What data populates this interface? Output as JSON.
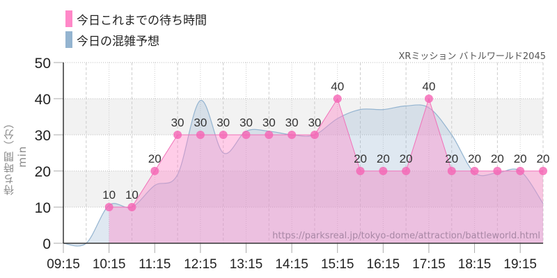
{
  "legend": {
    "items": [
      {
        "label": "今日これまでの待ち時間",
        "color": "#ff88c8"
      },
      {
        "label": "今日の混雑予想",
        "color": "#94b4d0"
      }
    ]
  },
  "subtitle": "XRミッション バトルワールド2045",
  "watermark": "https://parksreal.jp/tokyo-dome/attraction/battleworld.html",
  "chart_data": {
    "type": "area",
    "title": "XRミッション バトルワールド2045",
    "xlabel": "",
    "ylabel": "待ち時間（分） min",
    "ylim": [
      0,
      50
    ],
    "yticks": [
      0,
      10,
      20,
      30,
      40,
      50
    ],
    "xticks": [
      "09:15",
      "10:15",
      "11:15",
      "12:15",
      "13:15",
      "14:15",
      "15:15",
      "16:15",
      "17:15",
      "18:15",
      "19:15"
    ],
    "grid": true,
    "legend_position": "top-left",
    "series": [
      {
        "name": "今日これまでの待ち時間",
        "color": "#ff88c8",
        "x": [
          "10:15",
          "10:45",
          "11:15",
          "11:45",
          "12:15",
          "12:45",
          "13:15",
          "13:45",
          "14:15",
          "14:45",
          "15:15",
          "15:45",
          "16:15",
          "16:45",
          "17:15",
          "17:45",
          "18:15",
          "18:45",
          "19:15",
          "19:45"
        ],
        "values": [
          10,
          10,
          20,
          30,
          30,
          30,
          30,
          30,
          30,
          30,
          40,
          20,
          20,
          20,
          40,
          20,
          20,
          20,
          20,
          20
        ],
        "labels_shown": true
      },
      {
        "name": "今日の混雑予想",
        "color": "#94b4d0",
        "x": [
          "09:15",
          "09:45",
          "10:15",
          "10:45",
          "11:15",
          "11:45",
          "12:15",
          "12:45",
          "13:15",
          "13:45",
          "14:15",
          "14:45",
          "15:15",
          "15:45",
          "16:15",
          "16:45",
          "17:15",
          "17:45",
          "18:15",
          "18:45",
          "19:15",
          "19:45"
        ],
        "values": [
          0,
          0,
          10.5,
          10,
          16,
          19,
          39.5,
          25,
          31,
          31,
          30,
          30,
          34.5,
          37,
          37,
          38,
          37.5,
          30,
          19.5,
          19.5,
          20,
          11
        ]
      }
    ]
  }
}
